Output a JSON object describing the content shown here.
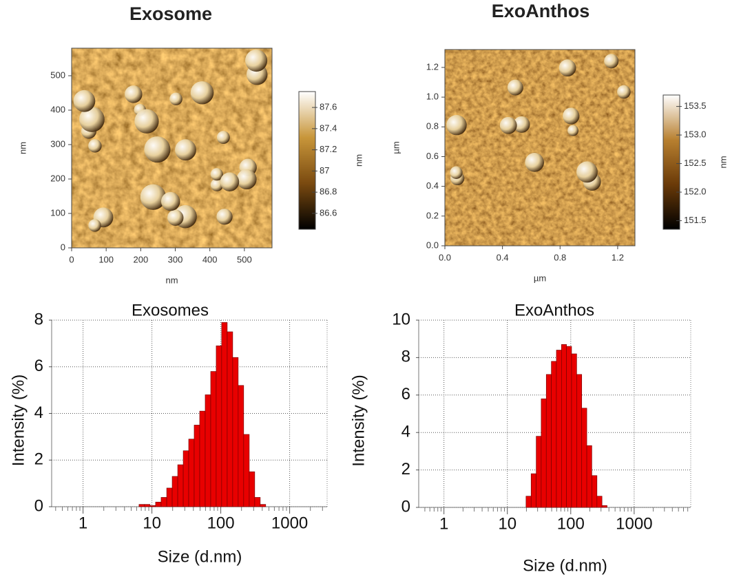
{
  "chart_data": [
    {
      "type": "image",
      "title": "Exosome",
      "xlabel": "nm",
      "ylabel": "nm",
      "xlim": [
        0,
        580
      ],
      "ylim": [
        0,
        580
      ],
      "xticks": [
        0,
        100,
        200,
        300,
        400,
        500
      ],
      "yticks": [
        0,
        100,
        200,
        300,
        400,
        500
      ],
      "colorbar_label": "nm",
      "clim": [
        86.45,
        87.75
      ],
      "cticks": [
        86.6,
        86.8,
        87.0,
        87.2,
        87.4,
        87.6
      ],
      "colormap": [
        "#000000",
        "#7a4a10",
        "#c8963a",
        "#ffffff"
      ]
    },
    {
      "type": "image",
      "title": "ExoAnthos",
      "xlabel": "µm",
      "ylabel": "µm",
      "xlim": [
        0,
        1.32
      ],
      "ylim": [
        0,
        1.32
      ],
      "xticks": [
        {
          "value": 0,
          "label": "0.0"
        },
        0.4,
        0.8,
        1.2
      ],
      "yticks": [
        {
          "value": 0,
          "label": "0.0"
        },
        0.2,
        0.4,
        0.6,
        0.8,
        {
          "value": 1,
          "label": "1.0"
        },
        1.2
      ],
      "colorbar_label": "nm",
      "clim": [
        151.35,
        153.7
      ],
      "cticks": [
        151.5,
        {
          "value": 152,
          "label": "152.0"
        },
        152.5,
        {
          "value": 153,
          "label": "153.0"
        },
        153.5
      ],
      "colormap": [
        "#000000",
        "#6a3a08",
        "#b88030",
        "#ffffff"
      ]
    },
    {
      "type": "histogram",
      "title": "Exosomes",
      "xlabel": "Size (d.nm)",
      "ylabel": "Intensity (%)",
      "log_x": true,
      "grid": true,
      "color": "#e80000",
      "xlim": [
        0.35,
        3500
      ],
      "xticks": [
        1,
        10,
        100,
        1000
      ],
      "ylim": [
        0,
        8
      ],
      "yticks": [
        0,
        2,
        4,
        6,
        8
      ],
      "bins": [
        6.5,
        7.8,
        9.4,
        11.3,
        13.6,
        16.4,
        19.7,
        23.7,
        28.5,
        34.2,
        41.1,
        49.4,
        59.4,
        71.4,
        85.8,
        103,
        124,
        149,
        179,
        215,
        259,
        311,
        374,
        449
      ],
      "values": [
        0.1,
        0.1,
        0.05,
        0.2,
        0.4,
        0.8,
        1.3,
        1.8,
        2.4,
        2.9,
        3.5,
        4.1,
        4.8,
        5.8,
        6.9,
        7.9,
        7.5,
        6.4,
        5.2,
        3.1,
        1.5,
        0.4,
        0.1
      ]
    },
    {
      "type": "histogram",
      "title": "ExoAnthos",
      "xlabel": "Size (d.nm)",
      "ylabel": "Intensity (%)",
      "log_x": true,
      "grid": true,
      "color": "#e80000",
      "xlim": [
        0.4,
        7800
      ],
      "xticks": [
        1,
        10,
        100,
        1000
      ],
      "ylim": [
        0,
        10
      ],
      "yticks": [
        0,
        2,
        4,
        6,
        8,
        10
      ],
      "bins": [
        19.7,
        23.7,
        28.5,
        34.2,
        41.1,
        49.4,
        59.4,
        71.4,
        85.8,
        103,
        124,
        149,
        179,
        215,
        259,
        311,
        374
      ],
      "values": [
        0.6,
        1.8,
        3.8,
        5.8,
        7.1,
        7.8,
        8.4,
        8.7,
        8.6,
        8.2,
        7.1,
        5.3,
        3.3,
        1.7,
        0.6,
        0.1
      ]
    }
  ]
}
